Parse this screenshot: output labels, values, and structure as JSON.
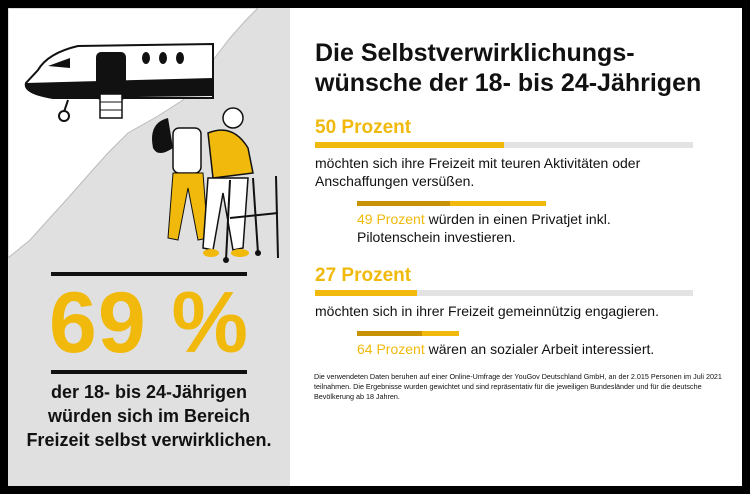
{
  "title": "Die Selbstverwirklichungs-wünsche der 18- bis 24-Jährigen",
  "left": {
    "headline_value": "69 %",
    "headline_text": "der 18- bis 24-Jährigen würden sich im Bereich Freizeit selbst verwirklichen."
  },
  "stats": [
    {
      "label": "50 Prozent",
      "percent": 50,
      "text": "möchten sich ihre Freizeit mit teuren Aktivitäten oder Anschaffungen versüßen.",
      "sub": {
        "label": "49 Prozent",
        "percent": 49,
        "text": "würden in einen Privatjet inkl. Pilotenschein investieren."
      }
    },
    {
      "label": "27 Prozent",
      "percent": 27,
      "text": "möchten sich in ihrer Freizeit gemeinnützig engagieren.",
      "sub": {
        "label": "64 Prozent",
        "percent": 64,
        "text": "wären an sozialer Arbeit interessiert."
      }
    }
  ],
  "footnote": "Die verwendeten Daten beruhen auf einer Online-Umfrage der YouGov Deutschland GmbH, an der 2.015 Personen im Juli 2021 teilnahmen. Die Ergebnisse wurden gewichtet und sind repräsentativ für die jeweiligen Bundesländer und für die deutsche Bevölkerung ab 18 Jahren.",
  "colors": {
    "accent": "#f0b90b",
    "accent_dark": "#c99206",
    "track": "#e3e3e3",
    "panel": "#e0e0e0"
  },
  "icons": [
    "airplane-illustration",
    "caregiver-with-elderly-walker-illustration"
  ]
}
